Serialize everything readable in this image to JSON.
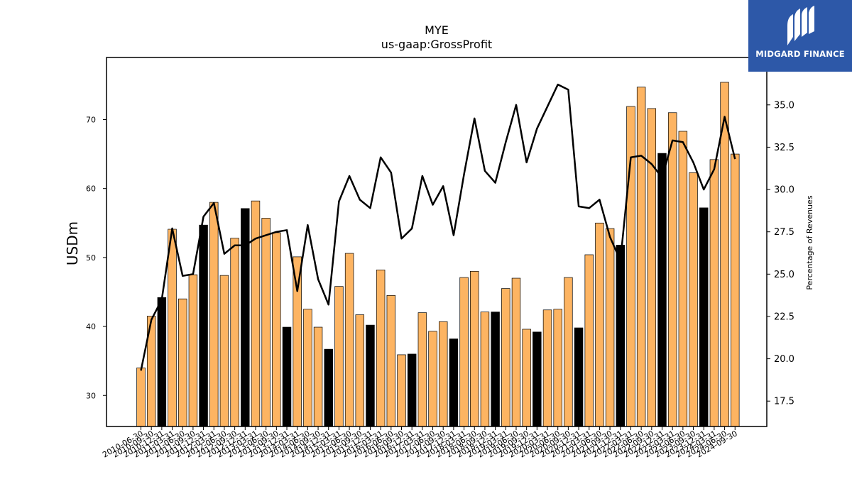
{
  "brand": {
    "name": "MIDGARD FINANCE",
    "mark_color": "#ffffff",
    "bg_color": "#2d58a8"
  },
  "chart_data": {
    "type": "bar",
    "title": "MYE",
    "subtitle": "us-gaap:GrossProfit",
    "ylabel": "USDm",
    "y2label": "Percentage of Revenues",
    "ylim": [
      25.5,
      79
    ],
    "y2lim": [
      16,
      37.8
    ],
    "yticks": [
      30,
      40,
      50,
      60,
      70
    ],
    "y2ticks": [
      17.5,
      20.0,
      22.5,
      25.0,
      27.5,
      30.0,
      32.5,
      35.0
    ],
    "colors": {
      "bar_default": "#fdb462",
      "bar_highlight": "#000000",
      "line": "#000000"
    },
    "categories": [
      "2010-06-30",
      "2010-09-30",
      "2010-12-31",
      "2011-03-31",
      "2011-06-30",
      "2011-09-30",
      "2011-12-31",
      "2012-03-31",
      "2012-06-30",
      "2012-09-30",
      "2012-12-31",
      "2013-03-31",
      "2013-06-30",
      "2013-09-30",
      "2013-12-31",
      "2014-03-31",
      "2014-06-30",
      "2014-09-30",
      "2014-12-31",
      "2015-03-31",
      "2015-06-30",
      "2015-09-30",
      "2015-12-31",
      "2016-03-31",
      "2016-06-30",
      "2016-09-30",
      "2016-12-31",
      "2017-03-31",
      "2017-06-30",
      "2017-09-30",
      "2017-12-31",
      "2018-03-31",
      "2018-06-30",
      "2018-09-30",
      "2018-12-31",
      "2019-03-31",
      "2019-06-30",
      "2019-09-30",
      "2019-12-31",
      "2020-03-31",
      "2020-06-30",
      "2020-09-30",
      "2020-12-31",
      "2021-03-31",
      "2021-06-30",
      "2021-09-30",
      "2021-12-31",
      "2022-03-31",
      "2022-06-30",
      "2022-09-30",
      "2022-12-31",
      "2023-03-31",
      "2023-06-30",
      "2023-09-30",
      "2023-12-31",
      "2024-03-31",
      "2024-06-30",
      "2024-09-30"
    ],
    "series": [
      {
        "type": "bar",
        "values": [
          34.0,
          41.5,
          44.2,
          54.1,
          44.0,
          47.5,
          54.7,
          58.0,
          47.4,
          52.8,
          57.1,
          58.2,
          55.7,
          53.6,
          39.9,
          50.1,
          42.5,
          39.9,
          36.7,
          45.8,
          50.6,
          41.7,
          40.2,
          48.2,
          44.5,
          35.9,
          36.0,
          42.0,
          39.3,
          40.7,
          38.2,
          47.1,
          48.0,
          42.1,
          42.1,
          45.5,
          47.0,
          39.6,
          39.2,
          42.4,
          42.5,
          47.1,
          39.8,
          50.4,
          55.0,
          54.2,
          51.8,
          71.9,
          74.7,
          71.6,
          65.1,
          71.0,
          68.3,
          62.3,
          57.2,
          64.2,
          75.4,
          65.0
        ],
        "highlighted": [
          2,
          6,
          10,
          14,
          18,
          22,
          26,
          30,
          34,
          38,
          42,
          46,
          50,
          54
        ]
      },
      {
        "type": "line",
        "axis": "right",
        "values": [
          19.3,
          22.3,
          23.5,
          27.7,
          24.9,
          25.0,
          28.4,
          29.2,
          26.2,
          26.7,
          26.7,
          27.1,
          27.3,
          27.5,
          27.6,
          24.0,
          27.9,
          24.7,
          23.2,
          29.3,
          30.8,
          29.4,
          28.9,
          31.9,
          31.0,
          27.1,
          27.7,
          30.8,
          29.1,
          30.2,
          27.3,
          30.9,
          34.2,
          31.1,
          30.4,
          32.8,
          35.0,
          31.6,
          33.6,
          34.9,
          36.2,
          35.9,
          29.0,
          28.9,
          29.4,
          27.2,
          25.8,
          31.9,
          32.0,
          31.5,
          30.7,
          32.9,
          32.8,
          31.6,
          30.0,
          31.2,
          34.3,
          31.8
        ]
      }
    ]
  }
}
